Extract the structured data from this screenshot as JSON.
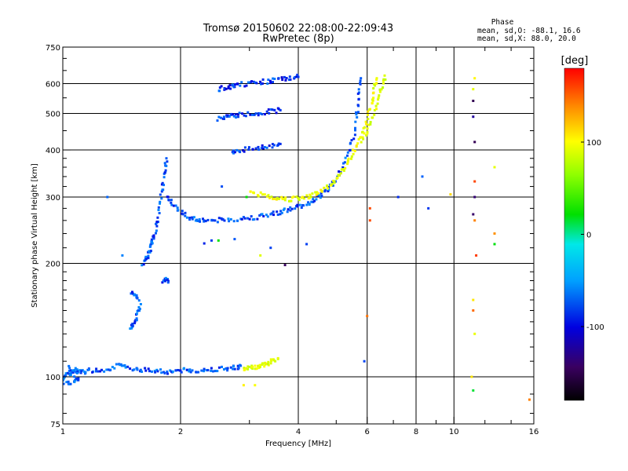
{
  "chart_data": {
    "type": "scatter",
    "title_line1": "Tromsø 20150602 22:08:00-22:09:43",
    "title_line2": "RwPretec (8p)",
    "phase_stats": {
      "header": "Phase",
      "line_o": "mean, sd,O: -88.1, 16.6",
      "line_x": "mean, sd,X:  88.0, 20.0"
    },
    "xlabel": "Frequency [MHz]",
    "ylabel": "Stationary phase Virtual Height [km]",
    "x_scale": "log",
    "y_scale": "log",
    "xlim": [
      1,
      16
    ],
    "ylim": [
      75,
      750
    ],
    "x_ticks": [
      1,
      2,
      4,
      6,
      8,
      10,
      16
    ],
    "x_tick_labels": [
      "1",
      "2",
      "4",
      "6",
      "8",
      "10",
      "16"
    ],
    "x_gridlines": [
      2,
      4,
      6,
      8,
      10
    ],
    "y_ticks": [
      75,
      100,
      200,
      300,
      400,
      500,
      600,
      750
    ],
    "y_tick_labels": [
      "75",
      "100",
      "200",
      "300",
      "400",
      "500",
      "600",
      "750"
    ],
    "y_gridlines": [
      100,
      200,
      300,
      400,
      500,
      600
    ],
    "grid": true,
    "colorbar": {
      "label": "[deg]",
      "range": [
        -180,
        180
      ],
      "ticks": [
        100,
        0,
        -100
      ],
      "tick_labels": [
        "100",
        "0",
        "-100"
      ]
    },
    "series": [
      {
        "kind": "trace",
        "phase": -98,
        "points": [
          [
            1.0,
            100
          ],
          [
            1.03,
            101
          ],
          [
            1.06,
            103
          ],
          [
            1.1,
            103
          ],
          [
            1.15,
            104
          ],
          [
            1.22,
            104
          ],
          [
            1.3,
            105
          ],
          [
            1.38,
            107
          ],
          [
            1.45,
            106
          ],
          [
            1.55,
            105
          ],
          [
            1.65,
            104
          ],
          [
            1.75,
            104
          ],
          [
            1.85,
            103
          ],
          [
            1.95,
            104
          ],
          [
            2.05,
            104
          ],
          [
            2.15,
            104
          ],
          [
            2.3,
            104
          ],
          [
            2.45,
            105
          ],
          [
            2.6,
            105
          ],
          [
            2.75,
            106
          ],
          [
            2.85,
            107
          ]
        ]
      },
      {
        "kind": "trace",
        "phase": -95,
        "points": [
          [
            1.0,
            97
          ],
          [
            1.05,
            96
          ],
          [
            1.1,
            98
          ],
          [
            1.03,
            106
          ],
          [
            1.08,
            104
          ],
          [
            1.14,
            102
          ]
        ]
      },
      {
        "kind": "trace",
        "phase": 90,
        "points": [
          [
            2.9,
            105
          ],
          [
            3.0,
            106
          ],
          [
            3.1,
            106
          ],
          [
            3.2,
            107
          ],
          [
            3.3,
            108
          ],
          [
            3.4,
            110
          ],
          [
            3.55,
            112
          ]
        ]
      },
      {
        "kind": "trace",
        "phase": -100,
        "points": [
          [
            1.48,
            135
          ],
          [
            1.52,
            138
          ],
          [
            1.55,
            147
          ],
          [
            1.58,
            155
          ],
          [
            1.5,
            168
          ],
          [
            1.55,
            162
          ]
        ]
      },
      {
        "kind": "trace",
        "phase": -100,
        "points": [
          [
            1.6,
            200
          ],
          [
            1.63,
            205
          ],
          [
            1.66,
            212
          ],
          [
            1.68,
            220
          ],
          [
            1.7,
            230
          ],
          [
            1.72,
            240
          ],
          [
            1.75,
            260
          ],
          [
            1.78,
            290
          ],
          [
            1.8,
            320
          ],
          [
            1.82,
            350
          ],
          [
            1.84,
            380
          ]
        ]
      },
      {
        "kind": "trace",
        "phase": -100,
        "points": [
          [
            1.8,
            180
          ],
          [
            1.83,
            182
          ],
          [
            1.86,
            178
          ]
        ]
      },
      {
        "kind": "trace",
        "phase": -100,
        "points": [
          [
            1.85,
            300
          ],
          [
            1.9,
            290
          ],
          [
            2.0,
            275
          ],
          [
            2.1,
            265
          ],
          [
            2.2,
            262
          ],
          [
            2.3,
            260
          ],
          [
            2.45,
            260
          ],
          [
            2.6,
            261
          ],
          [
            2.8,
            262
          ],
          [
            3.0,
            264
          ],
          [
            3.2,
            266
          ],
          [
            3.4,
            270
          ],
          [
            3.6,
            274
          ],
          [
            3.8,
            278
          ],
          [
            4.0,
            283
          ],
          [
            4.2,
            288
          ],
          [
            4.4,
            295
          ],
          [
            4.6,
            305
          ],
          [
            4.8,
            318
          ],
          [
            5.0,
            335
          ],
          [
            5.2,
            360
          ],
          [
            5.4,
            395
          ],
          [
            5.55,
            440
          ],
          [
            5.65,
            500
          ],
          [
            5.72,
            560
          ],
          [
            5.78,
            620
          ]
        ]
      },
      {
        "kind": "trace",
        "phase": -108,
        "points": [
          [
            2.5,
            580
          ],
          [
            2.6,
            585
          ],
          [
            2.7,
            590
          ],
          [
            2.8,
            595
          ],
          [
            3.0,
            600
          ],
          [
            3.2,
            605
          ],
          [
            3.4,
            610
          ],
          [
            3.6,
            615
          ],
          [
            3.8,
            620
          ],
          [
            4.0,
            625
          ]
        ]
      },
      {
        "kind": "trace",
        "phase": -108,
        "points": [
          [
            2.5,
            485
          ],
          [
            2.6,
            490
          ],
          [
            2.7,
            492
          ],
          [
            2.8,
            495
          ],
          [
            3.0,
            498
          ],
          [
            3.2,
            502
          ],
          [
            3.4,
            506
          ],
          [
            3.6,
            510
          ]
        ]
      },
      {
        "kind": "trace",
        "phase": -110,
        "points": [
          [
            2.7,
            395
          ],
          [
            2.8,
            398
          ],
          [
            3.0,
            402
          ],
          [
            3.2,
            406
          ],
          [
            3.4,
            410
          ],
          [
            3.6,
            415
          ]
        ]
      },
      {
        "kind": "trace",
        "phase": 92,
        "points": [
          [
            3.0,
            310
          ],
          [
            3.2,
            305
          ],
          [
            3.4,
            300
          ],
          [
            3.6,
            297
          ],
          [
            3.8,
            296
          ],
          [
            4.0,
            297
          ],
          [
            4.2,
            300
          ],
          [
            4.4,
            305
          ],
          [
            4.6,
            312
          ],
          [
            4.8,
            322
          ],
          [
            5.0,
            335
          ],
          [
            5.2,
            352
          ],
          [
            5.4,
            375
          ],
          [
            5.6,
            405
          ],
          [
            5.8,
            440
          ],
          [
            6.0,
            480
          ],
          [
            6.15,
            530
          ],
          [
            6.25,
            580
          ],
          [
            6.35,
            620
          ]
        ]
      },
      {
        "kind": "trace",
        "phase": 85,
        "points": [
          [
            5.8,
            420
          ],
          [
            6.0,
            450
          ],
          [
            6.2,
            490
          ],
          [
            6.4,
            540
          ],
          [
            6.55,
            590
          ],
          [
            6.65,
            630
          ]
        ]
      },
      {
        "kind": "scatter",
        "phase": -100,
        "points": [
          [
            1.42,
            210
          ],
          [
            1.3,
            300
          ],
          [
            2.3,
            226
          ],
          [
            2.75,
            232
          ],
          [
            4.2,
            225
          ],
          [
            3.4,
            220
          ],
          [
            7.2,
            300
          ],
          [
            8.3,
            340
          ],
          [
            8.6,
            280
          ],
          [
            5.9,
            110
          ],
          [
            1.55,
            105
          ],
          [
            2.4,
            230
          ],
          [
            2.55,
            320
          ]
        ]
      },
      {
        "kind": "scatter",
        "phase": 150,
        "points": [
          [
            6.0,
            145
          ],
          [
            6.1,
            260
          ],
          [
            6.1,
            280
          ],
          [
            11.3,
            330
          ],
          [
            11.3,
            260
          ],
          [
            11.4,
            210
          ],
          [
            11.2,
            150
          ],
          [
            12.7,
            240
          ],
          [
            15.6,
            87
          ]
        ]
      },
      {
        "kind": "scatter",
        "phase": 100,
        "points": [
          [
            11.1,
            100
          ],
          [
            11.2,
            160
          ],
          [
            11.3,
            130
          ],
          [
            11.2,
            580
          ],
          [
            11.3,
            620
          ],
          [
            12.7,
            360
          ],
          [
            9.8,
            305
          ],
          [
            3.2,
            210
          ],
          [
            3.1,
            95
          ],
          [
            2.9,
            95
          ]
        ]
      },
      {
        "kind": "scatter",
        "phase": -150,
        "points": [
          [
            3.7,
            198
          ],
          [
            11.2,
            270
          ],
          [
            11.3,
            300
          ],
          [
            11.3,
            420
          ],
          [
            11.2,
            490
          ],
          [
            11.2,
            540
          ]
        ]
      },
      {
        "kind": "scatter",
        "phase": 10,
        "points": [
          [
            12.7,
            225
          ],
          [
            11.2,
            92
          ],
          [
            2.5,
            230
          ],
          [
            2.95,
            300
          ]
        ]
      }
    ]
  }
}
